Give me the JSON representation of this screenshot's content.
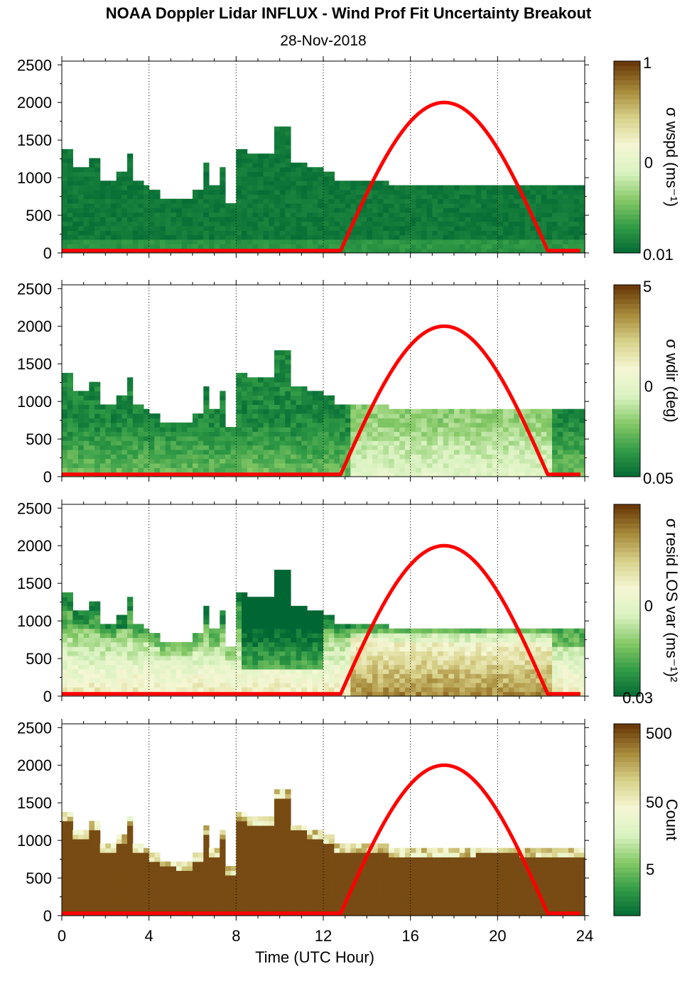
{
  "title": "NOAA Doppler Lidar INFLUX - Wind Prof Fit Uncertainty Breakout",
  "subtitle": "28-Nov-2018",
  "colors": {
    "sun_curve": "#ff0000",
    "colormap": [
      "#006633",
      "#2f9a45",
      "#84c865",
      "#d9f2c0",
      "#f5f7d5",
      "#d8d28a",
      "#a78a3a",
      "#6a3a08"
    ]
  },
  "chart_data": [
    {
      "type": "heatmap",
      "panel": "wspd",
      "xlim": [
        0,
        24
      ],
      "ylim": [
        0,
        2550
      ],
      "yticks": [
        "0",
        "500",
        "1000",
        "1500",
        "2000",
        "2500"
      ],
      "xticks": [
        "0",
        "4",
        "8",
        "12",
        "16",
        "20",
        "24"
      ],
      "colorbar": {
        "label": "σ wspd (ms⁻¹)",
        "ticks": [
          "1",
          "0",
          "0.01"
        ],
        "scale": "log"
      },
      "field_level": 0.02,
      "tops": [
        [
          0,
          1330
        ],
        [
          0.5,
          1130
        ],
        [
          1.1,
          1250
        ],
        [
          1.7,
          950
        ],
        [
          2.3,
          1050
        ],
        [
          2.8,
          1300
        ],
        [
          3.2,
          950
        ],
        [
          3.7,
          900
        ],
        [
          4.0,
          800
        ],
        [
          4.4,
          720
        ],
        [
          5.2,
          710
        ],
        [
          5.8,
          800
        ],
        [
          6.3,
          1150
        ],
        [
          6.7,
          850
        ],
        [
          7.1,
          1100
        ],
        [
          7.5,
          620
        ],
        [
          7.8,
          1350
        ],
        [
          8.4,
          1270
        ],
        [
          9.2,
          1300
        ],
        [
          9.7,
          1630
        ],
        [
          10.4,
          1200
        ],
        [
          11.1,
          1130
        ],
        [
          12.0,
          1050
        ],
        [
          12.4,
          930
        ],
        [
          13.5,
          920
        ],
        [
          15.0,
          890
        ],
        [
          16.0,
          880
        ],
        [
          17.5,
          870
        ],
        [
          19.0,
          900
        ],
        [
          21.0,
          880
        ],
        [
          22.0,
          850
        ],
        [
          23.0,
          850
        ],
        [
          23.8,
          810
        ]
      ]
    },
    {
      "type": "heatmap",
      "panel": "wdir",
      "xlim": [
        0,
        24
      ],
      "ylim": [
        0,
        2550
      ],
      "yticks": [
        "0",
        "500",
        "1000",
        "1500",
        "2000",
        "2500"
      ],
      "colorbar": {
        "label": "σ wdir (deg)",
        "ticks": [
          "5",
          "0",
          "0.05"
        ],
        "scale": "log"
      },
      "field_level": 0.1
    },
    {
      "type": "heatmap",
      "panel": "resid",
      "xlim": [
        0,
        24
      ],
      "ylim": [
        0,
        2550
      ],
      "yticks": [
        "0",
        "500",
        "1000",
        "1500",
        "2000",
        "2500"
      ],
      "colorbar": {
        "label": "σ resid LOS var (ms⁻¹)²",
        "ticks": [
          "0",
          "0.03"
        ],
        "scale": "log"
      },
      "field_level": 0.45
    },
    {
      "type": "heatmap",
      "panel": "count",
      "xlim": [
        0,
        24
      ],
      "ylim": [
        0,
        2550
      ],
      "yticks": [
        "0",
        "500",
        "1000",
        "1500",
        "2000",
        "2500"
      ],
      "xticks": [
        "0",
        "4",
        "8",
        "12",
        "16",
        "20",
        "24"
      ],
      "xlabel": "Time (UTC Hour)",
      "colorbar": {
        "label": "Count",
        "ticks": [
          "500",
          "50",
          "5"
        ],
        "scale": "log"
      },
      "field_level": 0.97
    }
  ],
  "sun_curve": {
    "rise_hour": 12.8,
    "peak_hour": 17.5,
    "set_hour": 22.3,
    "peak_value": 2000,
    "base_value": 30
  }
}
